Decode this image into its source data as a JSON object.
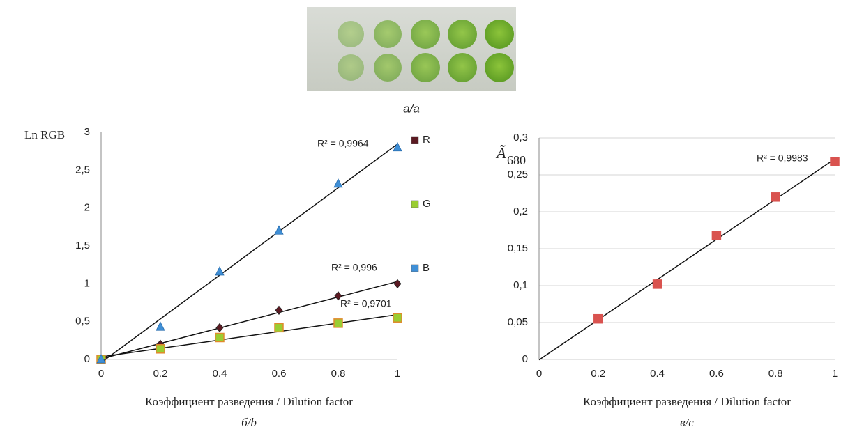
{
  "photo_caption": "а/a",
  "chart_data": [
    {
      "type": "scatter",
      "caption": "б/b",
      "xlabel": "Коэффициент разведения / Dilution factor",
      "ylabel": "Ln RGB",
      "xlim": [
        0,
        1
      ],
      "xticks": [
        0,
        0.2,
        0.4,
        0.6,
        0.8,
        1
      ],
      "ylim": [
        0,
        3
      ],
      "yticks": [
        0,
        {
          "value": 0.5,
          "label": "0,5"
        },
        1,
        {
          "value": 1.5,
          "label": "1,5"
        },
        2,
        {
          "value": 2.5,
          "label": "2,5"
        },
        3
      ],
      "grid": false,
      "legend": "right",
      "trendline": "linear",
      "annotations": [
        "R² = 0,9964",
        "R² = 0,996",
        "R² = 0,9701"
      ],
      "series": [
        {
          "name": "R",
          "color": "#5b1a22",
          "marker": "diamond",
          "x": [
            0,
            0.2,
            0.4,
            0.6,
            0.8,
            1
          ],
          "values": [
            0,
            0.2,
            0.42,
            0.65,
            0.84,
            1.0
          ]
        },
        {
          "name": "G",
          "color": "#9acd32",
          "marker": "square",
          "x": [
            0,
            0.2,
            0.4,
            0.6,
            0.8,
            1
          ],
          "values": [
            0,
            0.14,
            0.29,
            0.42,
            0.48,
            0.55
          ]
        },
        {
          "name": "B",
          "color": "#3f8fd6",
          "marker": "triangle",
          "x": [
            0,
            0.2,
            0.4,
            0.6,
            0.8,
            1
          ],
          "values": [
            0,
            0.43,
            1.16,
            1.7,
            2.32,
            2.8
          ]
        }
      ]
    },
    {
      "type": "scatter",
      "caption": "в/c",
      "xlabel": "Коэффициент разведения / Dilution factor",
      "ylabel": "Ã",
      "ylabel_subscript": "680",
      "xlim": [
        0,
        1
      ],
      "xticks": [
        0,
        0.2,
        0.4,
        0.6,
        0.8,
        1
      ],
      "ylim": [
        0,
        0.3
      ],
      "yticks": [
        0,
        {
          "value": 0.05,
          "label": "0,05"
        },
        {
          "value": 0.1,
          "label": "0,1"
        },
        {
          "value": 0.15,
          "label": "0,15"
        },
        {
          "value": 0.2,
          "label": "0,2"
        },
        {
          "value": 0.25,
          "label": "0,25"
        },
        {
          "value": 0.3,
          "label": "0,3"
        }
      ],
      "grid": true,
      "trendline": "linear",
      "annotations": [
        "R² = 0,9983"
      ],
      "series": [
        {
          "color": "#d9534f",
          "marker": "square",
          "x": [
            0.2,
            0.4,
            0.6,
            0.8,
            1
          ],
          "values": [
            0.055,
            0.102,
            0.168,
            0.22,
            0.268
          ]
        }
      ]
    }
  ]
}
